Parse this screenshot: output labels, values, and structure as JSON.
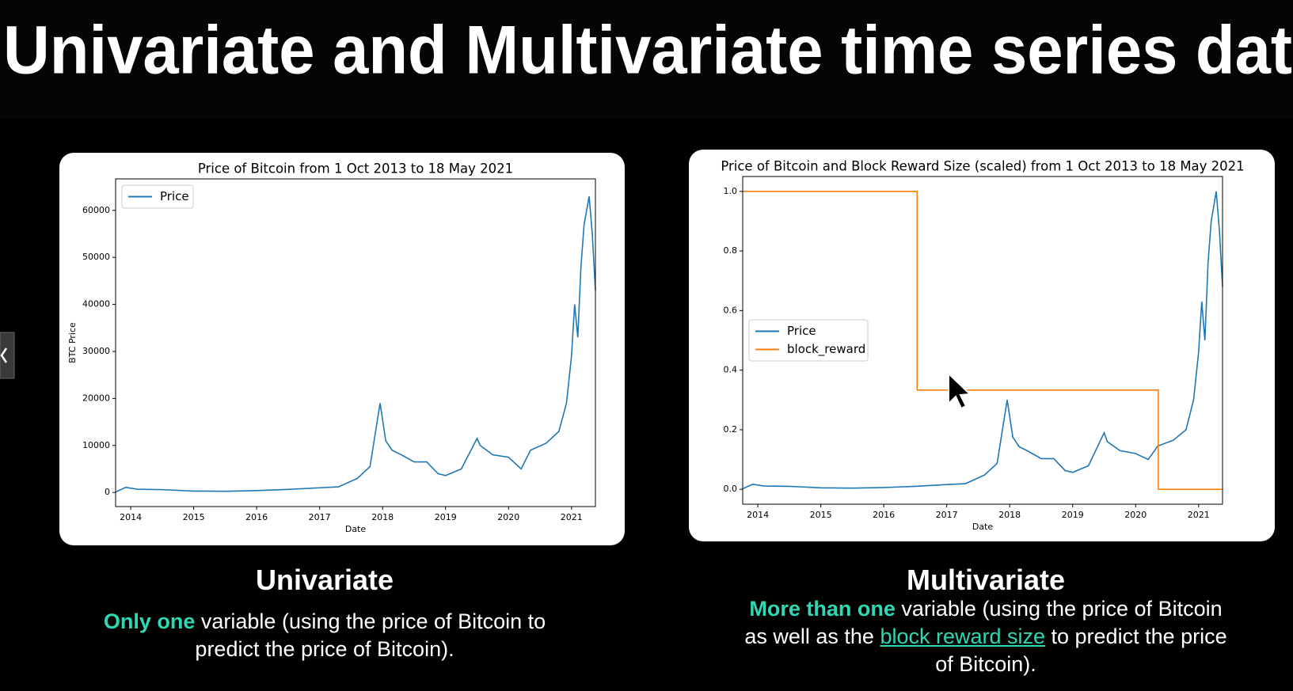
{
  "title": "Univariate and Multivariate time series dat",
  "chart_data": [
    {
      "type": "line",
      "title": "Price of Bitcoin from 1 Oct 2013 to 18 May 2021",
      "x_label": "Date",
      "y_label": "BTC Price",
      "xlim": [
        2013.76,
        2021.38
      ],
      "xticks": [
        2014,
        2015,
        2016,
        2017,
        2018,
        2019,
        2020,
        2021
      ],
      "ylim": [
        -3000,
        66700
      ],
      "yticks": [
        0,
        10000,
        20000,
        30000,
        40000,
        50000,
        60000
      ],
      "legend": "upper left",
      "series": [
        {
          "name": "Price",
          "color": "#1f77b4",
          "x": [
            2013.76,
            2013.92,
            2014.1,
            2014.5,
            2015.0,
            2015.5,
            2016.0,
            2016.5,
            2017.0,
            2017.3,
            2017.6,
            2017.8,
            2017.96,
            2018.05,
            2018.15,
            2018.3,
            2018.5,
            2018.7,
            2018.88,
            2019.0,
            2019.25,
            2019.5,
            2019.55,
            2019.75,
            2020.0,
            2020.2,
            2020.35,
            2020.6,
            2020.8,
            2020.92,
            2021.0,
            2021.05,
            2021.1,
            2021.15,
            2021.2,
            2021.28,
            2021.33,
            2021.38
          ],
          "values": [
            100,
            1100,
            700,
            600,
            300,
            250,
            400,
            650,
            1000,
            1200,
            3000,
            5500,
            19000,
            11000,
            9000,
            8000,
            6500,
            6500,
            4000,
            3600,
            5000,
            11500,
            10000,
            8000,
            7500,
            5000,
            9000,
            10500,
            13000,
            19000,
            29000,
            40000,
            33000,
            48000,
            57000,
            63000,
            55000,
            43000
          ]
        }
      ]
    },
    {
      "type": "line",
      "title": "Price of Bitcoin and Block Reward Size (scaled) from 1 Oct 2013 to 18 May 2021",
      "x_label": "Date",
      "xlim": [
        2013.76,
        2021.38
      ],
      "xticks": [
        2014,
        2015,
        2016,
        2017,
        2018,
        2019,
        2020,
        2021
      ],
      "ylim": [
        -0.05,
        1.05
      ],
      "yticks": [
        {
          "value": 0,
          "label": "0.0"
        },
        0.2,
        0.4,
        0.6,
        0.8,
        {
          "value": 1,
          "label": "1.0"
        }
      ],
      "legend": "center left",
      "series": [
        {
          "name": "Price",
          "color": "#1f77b4",
          "x": [
            2013.76,
            2013.92,
            2014.1,
            2014.5,
            2015.0,
            2015.5,
            2016.0,
            2016.5,
            2017.0,
            2017.3,
            2017.6,
            2017.8,
            2017.96,
            2018.05,
            2018.15,
            2018.3,
            2018.5,
            2018.7,
            2018.88,
            2019.0,
            2019.25,
            2019.5,
            2019.55,
            2019.75,
            2020.0,
            2020.2,
            2020.35,
            2020.6,
            2020.8,
            2020.92,
            2021.0,
            2021.05,
            2021.1,
            2021.15,
            2021.2,
            2021.28,
            2021.33,
            2021.38
          ],
          "values": [
            0.002,
            0.017,
            0.011,
            0.01,
            0.005,
            0.004,
            0.006,
            0.01,
            0.016,
            0.019,
            0.048,
            0.087,
            0.3,
            0.175,
            0.143,
            0.127,
            0.103,
            0.103,
            0.063,
            0.057,
            0.079,
            0.19,
            0.16,
            0.13,
            0.12,
            0.1,
            0.145,
            0.165,
            0.2,
            0.3,
            0.46,
            0.63,
            0.5,
            0.76,
            0.9,
            1.0,
            0.87,
            0.68
          ]
        },
        {
          "name": "block_reward",
          "color": "#ff7f0e",
          "x": [
            2013.76,
            2016.53,
            2016.53,
            2020.36,
            2020.36,
            2021.38
          ],
          "values": [
            1,
            1,
            0.333,
            0.333,
            0,
            0
          ]
        }
      ]
    }
  ],
  "captions": [
    {
      "heading": "Univariate",
      "highlight": "Only one",
      "text": " variable (using the price of Bitcoin to predict the price of Bitcoin)."
    },
    {
      "heading": "Multivariate",
      "highlight": "More than one",
      "text": " variable (using the price of Bitcoin as well as the ",
      "link": "block reward size",
      "text_end": " to predict the price of Bitcoin)."
    }
  ]
}
